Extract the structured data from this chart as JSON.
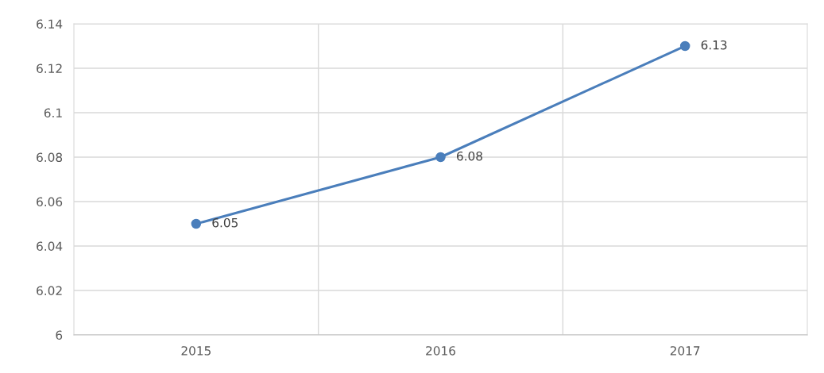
{
  "chart_data": {
    "type": "line",
    "categories": [
      "2015",
      "2016",
      "2017"
    ],
    "series": [
      {
        "color": "#4a7ebb",
        "values": [
          6.05,
          6.08,
          6.13
        ]
      }
    ],
    "ylim": [
      6,
      6.14
    ],
    "yticks": [
      {
        "value": 6,
        "label": "6"
      },
      6.02,
      6.04,
      6.06,
      6.08,
      {
        "value": 6.1,
        "label": "6.1"
      },
      6.12,
      6.14
    ],
    "grid": true,
    "marker": "circle",
    "line_style": "solid",
    "data_labels": true
  }
}
